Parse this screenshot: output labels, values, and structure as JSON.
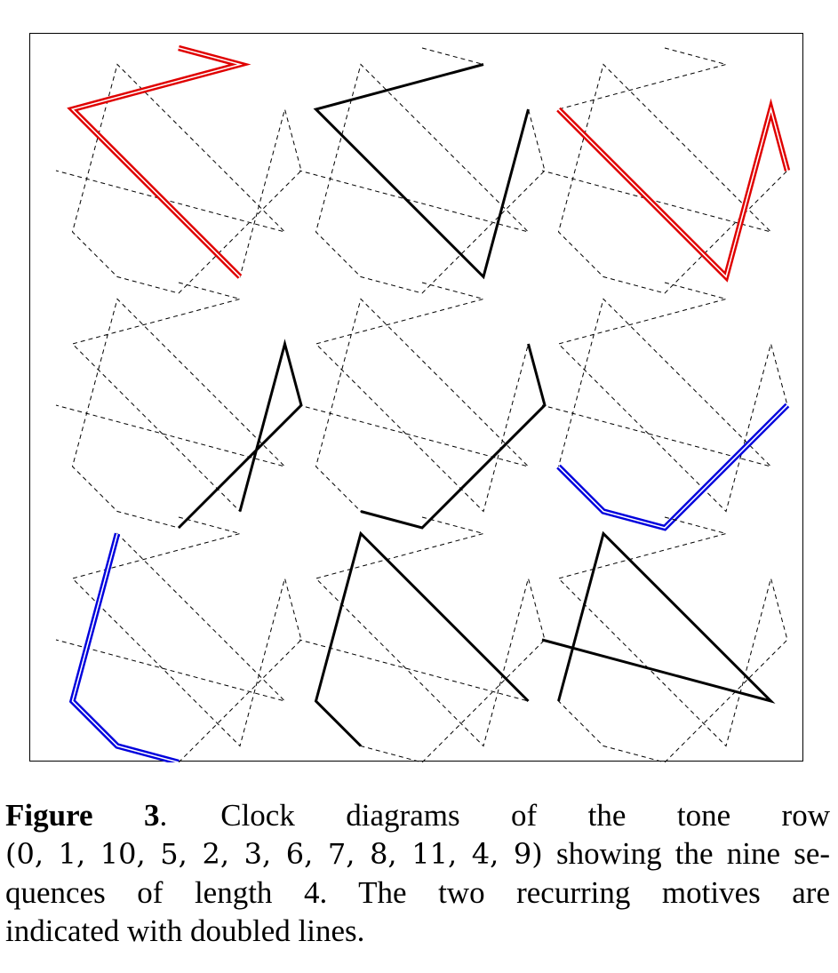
{
  "figure": {
    "clock_tones": [
      0,
      1,
      2,
      3,
      4,
      5,
      6,
      7,
      8,
      9,
      10,
      11
    ],
    "tone_row": [
      0,
      1,
      10,
      5,
      2,
      3,
      6,
      7,
      8,
      11,
      4,
      9
    ],
    "panels": [
      {
        "segment": [
          0,
          1,
          10,
          5
        ],
        "style": "double",
        "color": "#e00000"
      },
      {
        "segment": [
          1,
          10,
          5,
          2
        ],
        "style": "single",
        "color": "#000000"
      },
      {
        "segment": [
          10,
          5,
          2,
          3
        ],
        "style": "double",
        "color": "#e00000"
      },
      {
        "segment": [
          5,
          2,
          3,
          6
        ],
        "style": "single",
        "color": "#000000"
      },
      {
        "segment": [
          2,
          3,
          6,
          7
        ],
        "style": "single",
        "color": "#000000"
      },
      {
        "segment": [
          3,
          6,
          7,
          8
        ],
        "style": "double",
        "color": "#0000dd"
      },
      {
        "segment": [
          6,
          7,
          8,
          11
        ],
        "style": "double",
        "color": "#0000dd"
      },
      {
        "segment": [
          7,
          8,
          11,
          4
        ],
        "style": "single",
        "color": "#000000"
      },
      {
        "segment": [
          8,
          11,
          4,
          9
        ],
        "style": "single",
        "color": "#000000"
      }
    ],
    "dashed_color": "#000000"
  },
  "caption": {
    "label": "Figure 3",
    "label_punct": ".",
    "line1_text": "Clock diagrams of the tone row",
    "row_math": "(0, 1, 10, 5, 2, 3, 6, 7, 8, 11, 4, 9)",
    "line2_text": "showing the nine se-",
    "line3_text": "quences of length 4.   The two recurring motives are",
    "line4_text": "indicated with doubled lines."
  }
}
